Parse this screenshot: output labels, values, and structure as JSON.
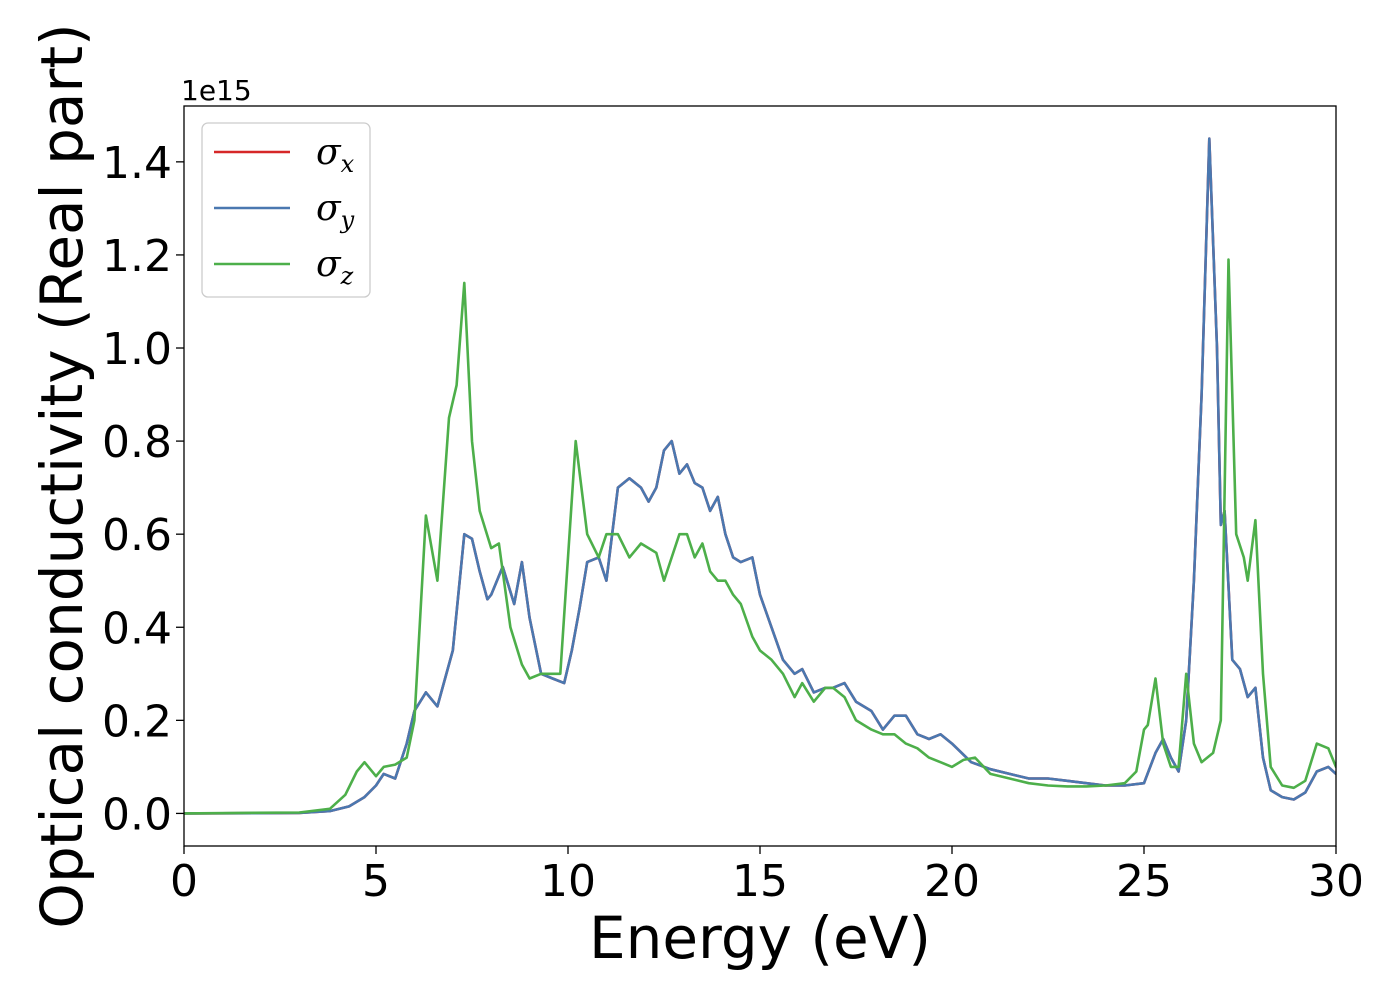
{
  "chart_data": {
    "type": "line",
    "title": "",
    "xlabel": "Energy (eV)",
    "ylabel": "Optical conductivity (Real part)",
    "y_offset_label": "1e15",
    "xlim": [
      0,
      30
    ],
    "ylim": [
      -0.07,
      1.52
    ],
    "x_ticks": [
      0,
      5,
      10,
      15,
      20,
      25,
      30
    ],
    "x_tick_labels": [
      "0",
      "5",
      "10",
      "15",
      "20",
      "25",
      "30"
    ],
    "y_ticks": [
      0.0,
      0.2,
      0.4,
      0.6,
      0.8,
      1.0,
      1.2,
      1.4
    ],
    "y_tick_labels": [
      "0.0",
      "0.2",
      "0.4",
      "0.6",
      "0.8",
      "1.0",
      "1.2",
      "1.4"
    ],
    "grid": false,
    "legend_position": "top-left",
    "series": [
      {
        "name": "σx",
        "symbol": "σ",
        "subscript": "x",
        "color": "#d62728",
        "x": [
          0,
          3,
          3.8,
          4.3,
          4.7,
          5.0,
          5.2,
          5.5,
          5.8,
          6.0,
          6.3,
          6.6,
          7.0,
          7.3,
          7.5,
          7.7,
          7.9,
          8.0,
          8.3,
          8.6,
          8.8,
          9.0,
          9.3,
          9.6,
          9.9,
          10.1,
          10.3,
          10.5,
          10.8,
          11.0,
          11.3,
          11.6,
          11.9,
          12.1,
          12.3,
          12.5,
          12.7,
          12.9,
          13.1,
          13.3,
          13.5,
          13.7,
          13.9,
          14.1,
          14.3,
          14.5,
          14.8,
          15.0,
          15.3,
          15.6,
          15.9,
          16.1,
          16.4,
          16.7,
          16.9,
          17.2,
          17.5,
          17.9,
          18.2,
          18.5,
          18.8,
          19.1,
          19.4,
          19.7,
          20.0,
          20.5,
          21.0,
          21.5,
          22.0,
          22.5,
          23.0,
          23.5,
          24.0,
          24.5,
          25.0,
          25.3,
          25.5,
          25.7,
          25.9,
          26.1,
          26.3,
          26.5,
          26.7,
          26.9,
          27.0,
          27.1,
          27.3,
          27.5,
          27.7,
          27.9,
          28.1,
          28.3,
          28.6,
          28.9,
          29.2,
          29.5,
          29.8,
          30.0
        ],
        "y": [
          0,
          0.001,
          0.005,
          0.015,
          0.035,
          0.06,
          0.085,
          0.075,
          0.15,
          0.22,
          0.26,
          0.23,
          0.35,
          0.6,
          0.59,
          0.52,
          0.46,
          0.47,
          0.53,
          0.45,
          0.54,
          0.42,
          0.3,
          0.29,
          0.28,
          0.35,
          0.44,
          0.54,
          0.55,
          0.5,
          0.7,
          0.72,
          0.7,
          0.67,
          0.7,
          0.78,
          0.8,
          0.73,
          0.75,
          0.71,
          0.7,
          0.65,
          0.68,
          0.6,
          0.55,
          0.54,
          0.55,
          0.47,
          0.4,
          0.33,
          0.3,
          0.31,
          0.26,
          0.27,
          0.27,
          0.28,
          0.24,
          0.22,
          0.18,
          0.21,
          0.21,
          0.17,
          0.16,
          0.17,
          0.15,
          0.11,
          0.095,
          0.085,
          0.075,
          0.075,
          0.07,
          0.065,
          0.06,
          0.06,
          0.065,
          0.13,
          0.16,
          0.12,
          0.09,
          0.2,
          0.5,
          0.9,
          1.45,
          1.0,
          0.62,
          0.65,
          0.33,
          0.31,
          0.25,
          0.27,
          0.12,
          0.05,
          0.035,
          0.03,
          0.045,
          0.09,
          0.1,
          0.085
        ]
      },
      {
        "name": "σy",
        "symbol": "σ",
        "subscript": "y",
        "color": "#4a78b0",
        "x": [
          0,
          3,
          3.8,
          4.3,
          4.7,
          5.0,
          5.2,
          5.5,
          5.8,
          6.0,
          6.3,
          6.6,
          7.0,
          7.3,
          7.5,
          7.7,
          7.9,
          8.0,
          8.3,
          8.6,
          8.8,
          9.0,
          9.3,
          9.6,
          9.9,
          10.1,
          10.3,
          10.5,
          10.8,
          11.0,
          11.3,
          11.6,
          11.9,
          12.1,
          12.3,
          12.5,
          12.7,
          12.9,
          13.1,
          13.3,
          13.5,
          13.7,
          13.9,
          14.1,
          14.3,
          14.5,
          14.8,
          15.0,
          15.3,
          15.6,
          15.9,
          16.1,
          16.4,
          16.7,
          16.9,
          17.2,
          17.5,
          17.9,
          18.2,
          18.5,
          18.8,
          19.1,
          19.4,
          19.7,
          20.0,
          20.5,
          21.0,
          21.5,
          22.0,
          22.5,
          23.0,
          23.5,
          24.0,
          24.5,
          25.0,
          25.3,
          25.5,
          25.7,
          25.9,
          26.1,
          26.3,
          26.5,
          26.7,
          26.9,
          27.0,
          27.1,
          27.3,
          27.5,
          27.7,
          27.9,
          28.1,
          28.3,
          28.6,
          28.9,
          29.2,
          29.5,
          29.8,
          30.0
        ],
        "y": [
          0,
          0.001,
          0.005,
          0.015,
          0.035,
          0.06,
          0.085,
          0.075,
          0.15,
          0.22,
          0.26,
          0.23,
          0.35,
          0.6,
          0.59,
          0.52,
          0.46,
          0.47,
          0.53,
          0.45,
          0.54,
          0.42,
          0.3,
          0.29,
          0.28,
          0.35,
          0.44,
          0.54,
          0.55,
          0.5,
          0.7,
          0.72,
          0.7,
          0.67,
          0.7,
          0.78,
          0.8,
          0.73,
          0.75,
          0.71,
          0.7,
          0.65,
          0.68,
          0.6,
          0.55,
          0.54,
          0.55,
          0.47,
          0.4,
          0.33,
          0.3,
          0.31,
          0.26,
          0.27,
          0.27,
          0.28,
          0.24,
          0.22,
          0.18,
          0.21,
          0.21,
          0.17,
          0.16,
          0.17,
          0.15,
          0.11,
          0.095,
          0.085,
          0.075,
          0.075,
          0.07,
          0.065,
          0.06,
          0.06,
          0.065,
          0.13,
          0.16,
          0.12,
          0.09,
          0.2,
          0.5,
          0.9,
          1.45,
          1.0,
          0.62,
          0.65,
          0.33,
          0.31,
          0.25,
          0.27,
          0.12,
          0.05,
          0.035,
          0.03,
          0.045,
          0.09,
          0.1,
          0.085
        ]
      },
      {
        "name": "σz",
        "symbol": "σ",
        "subscript": "z",
        "color": "#4daf4a",
        "x": [
          0,
          3,
          3.8,
          4.2,
          4.5,
          4.7,
          5.0,
          5.2,
          5.5,
          5.8,
          6.0,
          6.3,
          6.6,
          6.9,
          7.1,
          7.3,
          7.5,
          7.7,
          8.0,
          8.2,
          8.5,
          8.8,
          9.0,
          9.3,
          9.6,
          9.8,
          10.0,
          10.2,
          10.5,
          10.8,
          11.0,
          11.3,
          11.6,
          11.9,
          12.1,
          12.3,
          12.5,
          12.7,
          12.9,
          13.1,
          13.3,
          13.5,
          13.7,
          13.9,
          14.1,
          14.3,
          14.5,
          14.8,
          15.0,
          15.3,
          15.6,
          15.9,
          16.1,
          16.4,
          16.7,
          16.9,
          17.2,
          17.5,
          17.9,
          18.2,
          18.5,
          18.8,
          19.1,
          19.4,
          19.7,
          20.0,
          20.3,
          20.6,
          21.0,
          21.5,
          22.0,
          22.5,
          23.0,
          23.5,
          24.0,
          24.5,
          24.8,
          25.0,
          25.1,
          25.3,
          25.5,
          25.7,
          25.9,
          26.1,
          26.3,
          26.5,
          26.8,
          27.0,
          27.2,
          27.4,
          27.6,
          27.7,
          27.9,
          28.1,
          28.3,
          28.6,
          28.9,
          29.2,
          29.5,
          29.8,
          30.0
        ],
        "y": [
          0,
          0.002,
          0.01,
          0.04,
          0.09,
          0.11,
          0.08,
          0.1,
          0.105,
          0.12,
          0.2,
          0.64,
          0.5,
          0.85,
          0.92,
          1.14,
          0.8,
          0.65,
          0.57,
          0.58,
          0.4,
          0.32,
          0.29,
          0.3,
          0.3,
          0.3,
          0.55,
          0.8,
          0.6,
          0.55,
          0.6,
          0.6,
          0.55,
          0.58,
          0.57,
          0.56,
          0.5,
          0.55,
          0.6,
          0.6,
          0.55,
          0.58,
          0.52,
          0.5,
          0.5,
          0.47,
          0.45,
          0.38,
          0.35,
          0.33,
          0.3,
          0.25,
          0.28,
          0.24,
          0.27,
          0.27,
          0.25,
          0.2,
          0.18,
          0.17,
          0.17,
          0.15,
          0.14,
          0.12,
          0.11,
          0.1,
          0.115,
          0.12,
          0.085,
          0.075,
          0.065,
          0.06,
          0.058,
          0.058,
          0.06,
          0.065,
          0.09,
          0.18,
          0.19,
          0.29,
          0.15,
          0.1,
          0.1,
          0.3,
          0.15,
          0.11,
          0.13,
          0.2,
          1.19,
          0.6,
          0.55,
          0.5,
          0.63,
          0.3,
          0.1,
          0.06,
          0.055,
          0.07,
          0.15,
          0.14,
          0.1
        ]
      }
    ]
  }
}
